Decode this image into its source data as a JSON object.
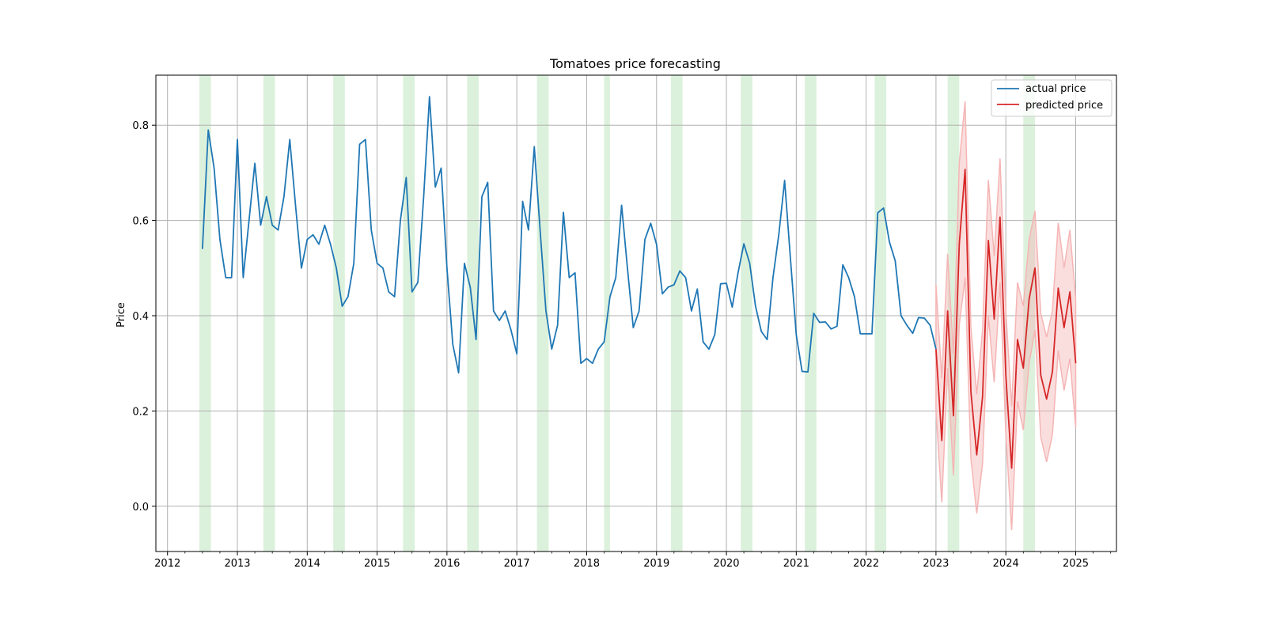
{
  "chart_data": {
    "type": "line",
    "title": "Tomatoes price forecasting",
    "xlabel": "",
    "ylabel": "Price",
    "xlim": [
      "2011-11-01",
      "2025-08-01"
    ],
    "ylim": [
      -0.095,
      0.905
    ],
    "x_ticks": [
      "2012",
      "2013",
      "2014",
      "2015",
      "2016",
      "2017",
      "2018",
      "2019",
      "2020",
      "2021",
      "2022",
      "2023",
      "2024",
      "2025"
    ],
    "y_ticks": [
      0.0,
      0.2,
      0.4,
      0.6,
      0.8
    ],
    "y_tick_labels": [
      "0.0",
      "0.2",
      "0.4",
      "0.6",
      "0.8"
    ],
    "grid": true,
    "legend_position": "top-right",
    "colors": {
      "actual": "#1f77b4",
      "predicted": "#d62728",
      "interval": "#f5b5b5",
      "shaded": "#c5e8c5",
      "grid": "#b0b0b0"
    },
    "shaded_periods": [
      [
        "2012-06-15",
        "2012-08-15"
      ],
      [
        "2013-05-15",
        "2013-07-15"
      ],
      [
        "2014-05-15",
        "2014-07-15"
      ],
      [
        "2015-05-15",
        "2015-07-15"
      ],
      [
        "2016-04-15",
        "2016-06-15"
      ],
      [
        "2017-04-15",
        "2017-06-15"
      ],
      [
        "2018-04-01",
        "2018-05-01"
      ],
      [
        "2019-03-15",
        "2019-05-15"
      ],
      [
        "2020-03-15",
        "2020-05-15"
      ],
      [
        "2021-02-15",
        "2021-04-15"
      ],
      [
        "2022-02-15",
        "2022-04-15"
      ],
      [
        "2023-03-01",
        "2023-05-01"
      ],
      [
        "2024-04-01",
        "2024-06-01"
      ]
    ],
    "series": [
      {
        "name": "actual price",
        "x": [
          "2012-07",
          "2012-08",
          "2012-09",
          "2012-10",
          "2012-11",
          "2012-12",
          "2013-01",
          "2013-02",
          "2013-03",
          "2013-04",
          "2013-05",
          "2013-06",
          "2013-07",
          "2013-08",
          "2013-09",
          "2013-10",
          "2013-11",
          "2013-12",
          "2014-01",
          "2014-02",
          "2014-03",
          "2014-04",
          "2014-05",
          "2014-06",
          "2014-07",
          "2014-08",
          "2014-09",
          "2014-10",
          "2014-11",
          "2014-12",
          "2015-01",
          "2015-02",
          "2015-03",
          "2015-04",
          "2015-05",
          "2015-06",
          "2015-07",
          "2015-08",
          "2015-09",
          "2015-10",
          "2015-11",
          "2015-12",
          "2016-01",
          "2016-02",
          "2016-03",
          "2016-04",
          "2016-05",
          "2016-06",
          "2016-07",
          "2016-08",
          "2016-09",
          "2016-10",
          "2016-11",
          "2016-12",
          "2017-01",
          "2017-02",
          "2017-03",
          "2017-04",
          "2017-05",
          "2017-06",
          "2017-07",
          "2017-08",
          "2017-09",
          "2017-10",
          "2017-11",
          "2017-12",
          "2018-01",
          "2018-02",
          "2018-03",
          "2018-04",
          "2018-05",
          "2018-06",
          "2018-07",
          "2018-08",
          "2018-09",
          "2018-10",
          "2018-11",
          "2018-12",
          "2019-01",
          "2019-02",
          "2019-03",
          "2019-04",
          "2019-05",
          "2019-06",
          "2019-07",
          "2019-08",
          "2019-09",
          "2019-10",
          "2019-11",
          "2019-12",
          "2020-01",
          "2020-02",
          "2020-03",
          "2020-04",
          "2020-05",
          "2020-06",
          "2020-07",
          "2020-08",
          "2020-09",
          "2020-10",
          "2020-11",
          "2020-12",
          "2021-01",
          "2021-02",
          "2021-03",
          "2021-04",
          "2021-05",
          "2021-06",
          "2021-07",
          "2021-08",
          "2021-09",
          "2021-10",
          "2021-11",
          "2021-12",
          "2022-01",
          "2022-02",
          "2022-03",
          "2022-04",
          "2022-05",
          "2022-06",
          "2022-07",
          "2022-08",
          "2022-09",
          "2022-10",
          "2022-11",
          "2022-12",
          "2023-01"
        ],
        "values": [
          0.54,
          0.79,
          0.71,
          0.56,
          0.48,
          0.48,
          0.77,
          0.48,
          0.6,
          0.72,
          0.59,
          0.65,
          0.59,
          0.58,
          0.65,
          0.77,
          0.63,
          0.5,
          0.56,
          0.57,
          0.55,
          0.59,
          0.55,
          0.5,
          0.42,
          0.44,
          0.51,
          0.76,
          0.77,
          0.58,
          0.51,
          0.5,
          0.45,
          0.44,
          0.6,
          0.69,
          0.45,
          0.47,
          0.65,
          0.86,
          0.67,
          0.71,
          0.5,
          0.34,
          0.28,
          0.51,
          0.46,
          0.35,
          0.65,
          0.68,
          0.41,
          0.39,
          0.41,
          0.37,
          0.32,
          0.64,
          0.58,
          0.755,
          0.58,
          0.41,
          0.33,
          0.38,
          0.617,
          0.48,
          0.49,
          0.3,
          0.31,
          0.3,
          0.33,
          0.345,
          0.44,
          0.48,
          0.632,
          0.5,
          0.375,
          0.41,
          0.56,
          0.594,
          0.55,
          0.446,
          0.46,
          0.465,
          0.494,
          0.48,
          0.41,
          0.456,
          0.345,
          0.33,
          0.36,
          0.467,
          0.468,
          0.418,
          0.49,
          0.551,
          0.51,
          0.42,
          0.367,
          0.35,
          0.48,
          0.57,
          0.684,
          0.52,
          0.36,
          0.283,
          0.282,
          0.405,
          0.386,
          0.387,
          0.372,
          0.378,
          0.507,
          0.48,
          0.44,
          0.362,
          0.362,
          0.362,
          0.616,
          0.626,
          0.555,
          0.515,
          0.4,
          0.38,
          0.363,
          0.396,
          0.395,
          0.38,
          0.33
        ]
      },
      {
        "name": "predicted price",
        "x": [
          "2023-01",
          "2023-02",
          "2023-03",
          "2023-04",
          "2023-05",
          "2023-06",
          "2023-07",
          "2023-08",
          "2023-09",
          "2023-10",
          "2023-11",
          "2023-12",
          "2024-01",
          "2024-02",
          "2024-03",
          "2024-04",
          "2024-05",
          "2024-06",
          "2024-07",
          "2024-08",
          "2024-09",
          "2024-10",
          "2024-11",
          "2024-12",
          "2025-01"
        ],
        "values": [
          0.33,
          0.138,
          0.41,
          0.19,
          0.55,
          0.707,
          0.24,
          0.108,
          0.23,
          0.558,
          0.393,
          0.607,
          0.275,
          0.08,
          0.35,
          0.29,
          0.435,
          0.5,
          0.275,
          0.225,
          0.282,
          0.458,
          0.375,
          0.45,
          0.3
        ],
        "lower": [
          0.2,
          0.008,
          0.29,
          0.065,
          0.38,
          0.48,
          0.1,
          -0.015,
          0.09,
          0.4,
          0.26,
          0.47,
          0.15,
          -0.05,
          0.22,
          0.16,
          0.3,
          0.37,
          0.145,
          0.093,
          0.15,
          0.327,
          0.243,
          0.31,
          0.165
        ],
        "upper": [
          0.465,
          0.268,
          0.53,
          0.32,
          0.72,
          0.85,
          0.375,
          0.235,
          0.37,
          0.685,
          0.525,
          0.73,
          0.41,
          0.21,
          0.47,
          0.42,
          0.56,
          0.62,
          0.405,
          0.355,
          0.41,
          0.595,
          0.5,
          0.58,
          0.435
        ]
      }
    ]
  }
}
